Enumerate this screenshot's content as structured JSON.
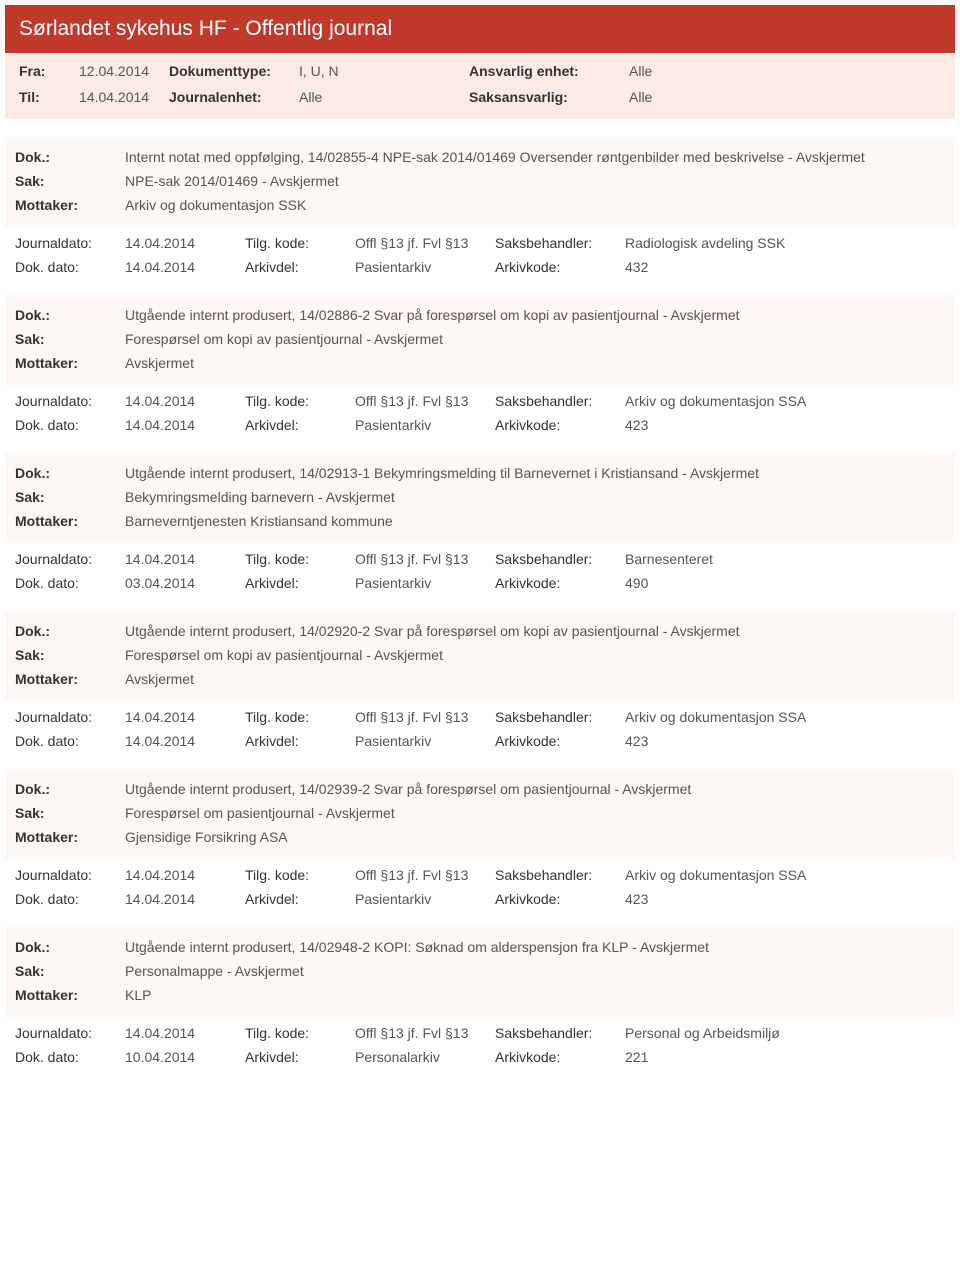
{
  "header_title": "Sørlandet sykehus HF - Offentlig journal",
  "filter": {
    "fra_label": "Fra:",
    "fra_value": "12.04.2014",
    "til_label": "Til:",
    "til_value": "14.04.2014",
    "dokumenttype_label": "Dokumenttype:",
    "dokumenttype_value": "I, U, N",
    "journalenhet_label": "Journalenhet:",
    "journalenhet_value": "Alle",
    "ansvarlig_label": "Ansvarlig enhet:",
    "ansvarlig_value": "Alle",
    "saksansvarlig_label": "Saksansvarlig:",
    "saksansvarlig_value": "Alle"
  },
  "labels": {
    "dok": "Dok.:",
    "sak": "Sak:",
    "mottaker": "Mottaker:",
    "journaldato": "Journaldato:",
    "dokdato": "Dok. dato:",
    "tilgkode": "Tilg. kode:",
    "arkivdel": "Arkivdel:",
    "saksbehandler": "Saksbehandler:",
    "arkivkode": "Arkivkode:"
  },
  "entries": [
    {
      "dok": "Internt notat med oppfølging, 14/02855-4 NPE-sak 2014/01469 Oversender røntgenbilder med beskrivelse - Avskjermet",
      "sak": "NPE-sak 2014/01469 - Avskjermet",
      "mottaker": "Arkiv og dokumentasjon SSK",
      "journaldato": "14.04.2014",
      "dokdato": "14.04.2014",
      "tilgkode": "Offl §13 jf. Fvl §13",
      "arkivdel": "Pasientarkiv",
      "saksbehandler": "Radiologisk avdeling SSK",
      "arkivkode": "432"
    },
    {
      "dok": "Utgående internt produsert, 14/02886-2 Svar på forespørsel om kopi av pasientjournal - Avskjermet",
      "sak": "Forespørsel om kopi av pasientjournal - Avskjermet",
      "mottaker": "Avskjermet",
      "journaldato": "14.04.2014",
      "dokdato": "14.04.2014",
      "tilgkode": "Offl §13 jf. Fvl §13",
      "arkivdel": "Pasientarkiv",
      "saksbehandler": "Arkiv og dokumentasjon SSA",
      "arkivkode": "423"
    },
    {
      "dok": "Utgående internt produsert, 14/02913-1 Bekymringsmelding til Barnevernet i Kristiansand - Avskjermet",
      "sak": "Bekymringsmelding barnevern - Avskjermet",
      "mottaker": "Barneverntjenesten Kristiansand kommune",
      "journaldato": "14.04.2014",
      "dokdato": "03.04.2014",
      "tilgkode": "Offl §13 jf. Fvl §13",
      "arkivdel": "Pasientarkiv",
      "saksbehandler": "Barnesenteret",
      "arkivkode": "490"
    },
    {
      "dok": "Utgående internt produsert, 14/02920-2 Svar på forespørsel om kopi av pasientjournal - Avskjermet",
      "sak": "Forespørsel om kopi av pasientjournal - Avskjermet",
      "mottaker": "Avskjermet",
      "journaldato": "14.04.2014",
      "dokdato": "14.04.2014",
      "tilgkode": "Offl §13 jf. Fvl §13",
      "arkivdel": "Pasientarkiv",
      "saksbehandler": "Arkiv og dokumentasjon SSA",
      "arkivkode": "423"
    },
    {
      "dok": "Utgående internt produsert, 14/02939-2 Svar på forespørsel om pasientjournal - Avskjermet",
      "sak": "Forespørsel om pasientjournal - Avskjermet",
      "mottaker": "Gjensidige Forsikring ASA",
      "journaldato": "14.04.2014",
      "dokdato": "14.04.2014",
      "tilgkode": "Offl §13 jf. Fvl §13",
      "arkivdel": "Pasientarkiv",
      "saksbehandler": "Arkiv og dokumentasjon SSA",
      "arkivkode": "423"
    },
    {
      "dok": "Utgående internt produsert, 14/02948-2 KOPI: Søknad om alderspensjon fra KLP - Avskjermet",
      "sak": "Personalmappe - Avskjermet",
      "mottaker": "KLP",
      "journaldato": "14.04.2014",
      "dokdato": "10.04.2014",
      "tilgkode": "Offl §13 jf. Fvl §13",
      "arkivdel": "Personalarkiv",
      "saksbehandler": "Personal og Arbeidsmiljø",
      "arkivkode": "221"
    }
  ]
}
